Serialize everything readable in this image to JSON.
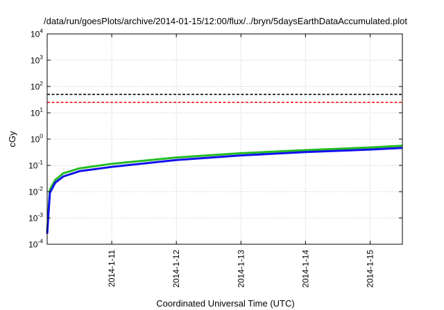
{
  "chart_data": {
    "type": "line",
    "title": "/data/run/goesPlots/archive/2014-01-15/12:00/flux/../bryn/5daysEarthDataAccumulated.plot",
    "xlabel": "Coordinated Universal Time (UTC)",
    "ylabel": "cGy",
    "yscale": "log",
    "ylim": [
      "1e-4",
      "1e4"
    ],
    "y_ticks": [
      {
        "base": "10",
        "exp": "-4"
      },
      {
        "base": "10",
        "exp": "-3"
      },
      {
        "base": "10",
        "exp": "-2"
      },
      {
        "base": "10",
        "exp": "-1"
      },
      {
        "base": "10",
        "exp": "0"
      },
      {
        "base": "10",
        "exp": "1"
      },
      {
        "base": "10",
        "exp": "2"
      },
      {
        "base": "10",
        "exp": "3"
      },
      {
        "base": "10",
        "exp": "4"
      }
    ],
    "xlim": [
      "2014-01-10 00:00",
      "2014-01-15 12:00"
    ],
    "x_ticks": [
      "2014-1-11",
      "2014-1-12",
      "2014-1-13",
      "2014-1-14",
      "2014-1-15"
    ],
    "grid": true,
    "series": [
      {
        "color": "#22bb22",
        "x": [
          "2014-01-10 00:00",
          "2014-01-10 01:00",
          "2014-01-10 03:00",
          "2014-01-10 06:00",
          "2014-01-10 12:00",
          "2014-01-11 00:00",
          "2014-01-12 00:00",
          "2014-01-13 00:00",
          "2014-01-14 00:00",
          "2014-01-15 00:00",
          "2014-01-15 12:00"
        ],
        "y": [
          0.0003,
          0.012,
          0.028,
          0.05,
          0.077,
          0.115,
          0.2,
          0.29,
          0.38,
          0.48,
          0.56
        ]
      },
      {
        "color": "#1111ee",
        "x": [
          "2014-01-10 00:00",
          "2014-01-10 01:00",
          "2014-01-10 03:00",
          "2014-01-10 06:00",
          "2014-01-10 12:00",
          "2014-01-11 00:00",
          "2014-01-12 00:00",
          "2014-01-13 00:00",
          "2014-01-14 00:00",
          "2014-01-15 00:00",
          "2014-01-15 12:00"
        ],
        "y": [
          0.00025,
          0.009,
          0.022,
          0.038,
          0.06,
          0.088,
          0.16,
          0.24,
          0.32,
          0.4,
          0.46
        ]
      }
    ],
    "reference_lines": [
      {
        "y": 50,
        "color": "#000000",
        "style": "dashed"
      },
      {
        "y": 25,
        "color": "#ee0000",
        "style": "dashed"
      }
    ]
  }
}
